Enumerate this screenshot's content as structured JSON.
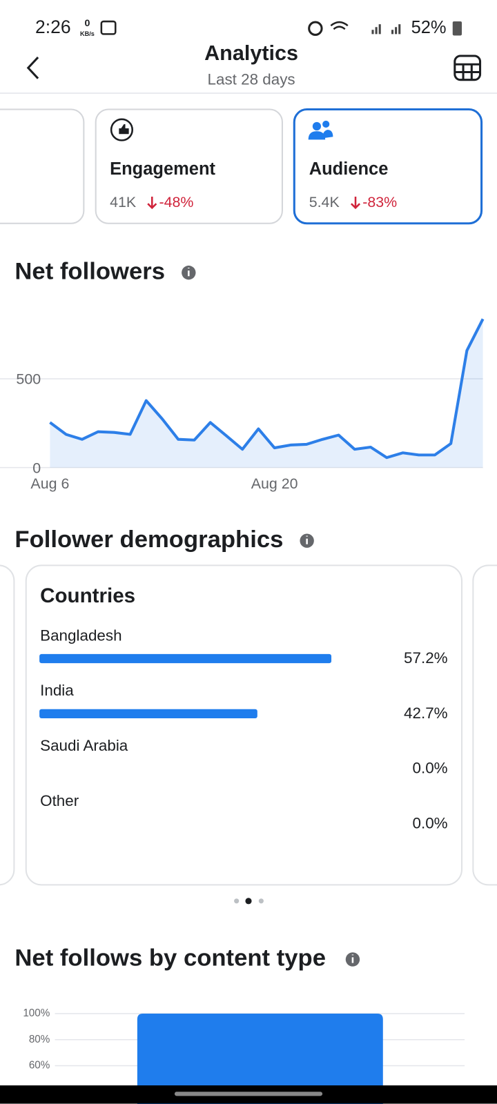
{
  "status_bar": {
    "time": "2:26",
    "net_speed": "0",
    "net_unit": "KB/s",
    "battery": "52%"
  },
  "header": {
    "title": "Analytics",
    "subtitle": "Last 28 days"
  },
  "metric_cards": [
    {
      "label": "Engagement",
      "value": "41K",
      "change": "-48%"
    },
    {
      "label": "Audience",
      "value": "5.4K",
      "change": "-83%"
    }
  ],
  "net_followers": {
    "title": "Net followers",
    "chart_data": {
      "type": "line",
      "categories": [
        "Aug 6",
        null,
        null,
        null,
        null,
        null,
        null,
        null,
        null,
        null,
        null,
        null,
        null,
        null,
        "Aug 20",
        null,
        null,
        null,
        null,
        null,
        null,
        null,
        null,
        null,
        null,
        null,
        null,
        null
      ],
      "series": [
        {
          "name": "Net followers",
          "color": "#2d7fe8",
          "values": [
            254,
            187,
            159,
            202,
            198,
            187,
            377,
            274,
            159,
            155,
            254,
            179,
            103,
            218,
            111,
            127,
            131,
            159,
            183,
            103,
            115,
            56,
            83,
            71,
            71,
            135,
            659,
            837
          ]
        }
      ],
      "ylim": [
        0,
        900
      ],
      "yticks": [
        0,
        500
      ],
      "grid": true
    }
  },
  "demographics": {
    "title": "Follower demographics",
    "chart_data": {
      "type": "hbar",
      "title": "Countries",
      "categories": [
        "Bangladesh",
        "India",
        "Saudi Arabia",
        "Other"
      ],
      "values": [
        57.2,
        42.7,
        0.0,
        0.0
      ],
      "value_labels": [
        "57.2%",
        "42.7%",
        "0.0%",
        "0.0%"
      ],
      "color": "#1f7ded",
      "xlim": [
        0,
        80
      ]
    }
  },
  "content_type": {
    "title": "Net follows by content type",
    "chart_data": {
      "type": "bar",
      "categories": [
        null
      ],
      "values": [
        100
      ],
      "color": "#1f7ded",
      "ylim": [
        0,
        100
      ],
      "yticks": [
        {
          "value": 100,
          "label": "100%"
        },
        {
          "value": 80,
          "label": "80%"
        },
        {
          "value": 60,
          "label": "60%"
        }
      ],
      "grid": true
    }
  }
}
